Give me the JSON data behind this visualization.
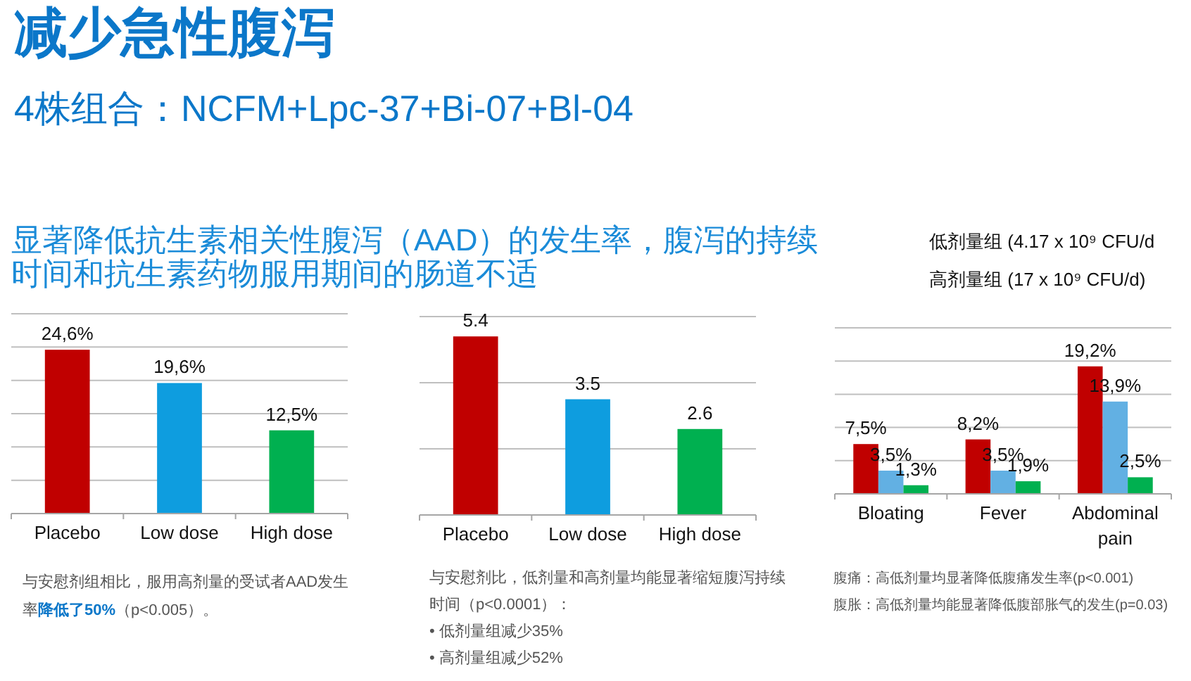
{
  "chart_data": [
    {
      "type": "other",
      "title": "减少急性腹泻",
      "subtitle": "4株组合：NCFM+Lpc-37+Bi-07+Bl-04",
      "annotations": [
        "显著降低抗生素相关性腹泻（AAD）的发生率，腹泻的持续时间和抗生素药物服用期间的肠道不适",
        "低剂量组 (4.17 x 10⁹ CFU/d",
        "高剂量组 (17 x 10⁹ CFU/d)"
      ]
    },
    {
      "type": "bar",
      "categories": [
        "Placebo",
        "Low dose",
        "High dose"
      ],
      "values": [
        24.6,
        19.6,
        12.5
      ],
      "colors": [
        "#c00000",
        "#0e9ddf",
        "#00b050"
      ],
      "value_labels": [
        "24,6%",
        "19,6%",
        "12,5%"
      ],
      "ylim": [
        0,
        30
      ],
      "yticks": [
        0,
        5,
        10,
        15,
        20,
        25,
        30
      ],
      "grid": "y",
      "tick_labels": "x",
      "annotations": [
        "与安慰剂组相比，服用高剂量的受试者AAD发生率**降低了50%**（p<0.005）。"
      ]
    },
    {
      "type": "bar",
      "categories": [
        "Placebo",
        "Low dose",
        "High dose"
      ],
      "values": [
        5.4,
        3.5,
        2.6
      ],
      "colors": [
        "#c00000",
        "#0e9ddf",
        "#00b050"
      ],
      "data_labels": true,
      "ylim": [
        0,
        6
      ],
      "yticks": [
        0,
        2,
        4,
        6
      ],
      "grid": "y",
      "tick_labels": "x",
      "annotations": [
        "与安慰剂比，低剂量和高剂量均能显著缩短腹泻持续时间（p<0.0001）：",
        "• 低剂量组减少35%",
        "• 高剂量组减少52%"
      ]
    },
    {
      "type": "bar",
      "categories": [
        "Bloating",
        "Fever",
        "Abdominal pain"
      ],
      "series": [
        {
          "color": "#c00000",
          "values": [
            7.5,
            8.2,
            19.2
          ],
          "value_labels": [
            "7,5%",
            "8,2%",
            "19,2%"
          ]
        },
        {
          "color": "#62b0e3",
          "values": [
            3.5,
            3.5,
            13.9
          ],
          "value_labels": [
            "3,5%",
            "3,5%",
            "13,9%"
          ]
        },
        {
          "color": "#00b050",
          "values": [
            1.3,
            1.9,
            2.5
          ],
          "value_labels": [
            "1,3%",
            "1,9%",
            "2,5%"
          ]
        }
      ],
      "ylim": [
        0,
        25
      ],
      "yticks": [
        0,
        5,
        10,
        15,
        20,
        25
      ],
      "grid": "y",
      "tick_labels": "x",
      "annotations": [
        "腹痛：高低剂量均显著降低腹痛发生率(p<0.001)",
        "腹胀：高低剂量均能显著降低腹部胀气的发生(p=0.03)"
      ]
    }
  ]
}
